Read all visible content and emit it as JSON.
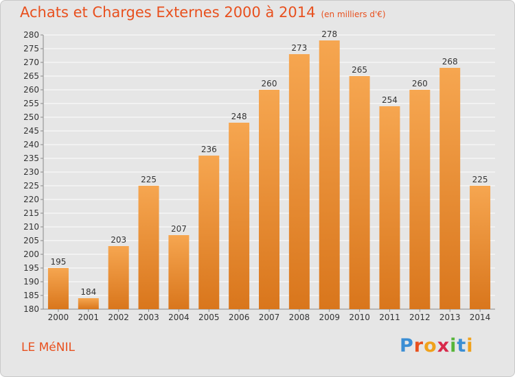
{
  "title": "Achats et Charges Externes 2000 à 2014",
  "subtitle": "(en milliers d'€)",
  "location": "LE MéNIL",
  "logo": {
    "text": "Proxiti",
    "letters": [
      {
        "char": "P",
        "color": "#3b8ed4"
      },
      {
        "char": "r",
        "color": "#e8501e"
      },
      {
        "char": "o",
        "color": "#f0a21c"
      },
      {
        "char": "x",
        "color": "#d8294a"
      },
      {
        "char": "i",
        "color": "#57b53a"
      },
      {
        "char": "t",
        "color": "#3b8ed4"
      },
      {
        "char": "i",
        "color": "#f0a21c"
      }
    ]
  },
  "colors": {
    "accent": "#e8501e",
    "bar_top": "#f6a650",
    "bar_bottom": "#d9761c",
    "grid": "#ffffff",
    "background": "#e6e6e6"
  },
  "chart_data": {
    "type": "bar",
    "title": "Achats et Charges Externes 2000 à 2014",
    "subtitle": "(en milliers d'€)",
    "categories": [
      "2000",
      "2001",
      "2002",
      "2003",
      "2004",
      "2005",
      "2006",
      "2007",
      "2008",
      "2009",
      "2010",
      "2011",
      "2012",
      "2013",
      "2014"
    ],
    "values": [
      195,
      184,
      203,
      225,
      207,
      236,
      248,
      260,
      273,
      278,
      265,
      254,
      260,
      268,
      225
    ],
    "ylim": [
      180,
      280
    ],
    "ytick_step": 5,
    "grid": true,
    "xlabel": "",
    "ylabel": ""
  }
}
